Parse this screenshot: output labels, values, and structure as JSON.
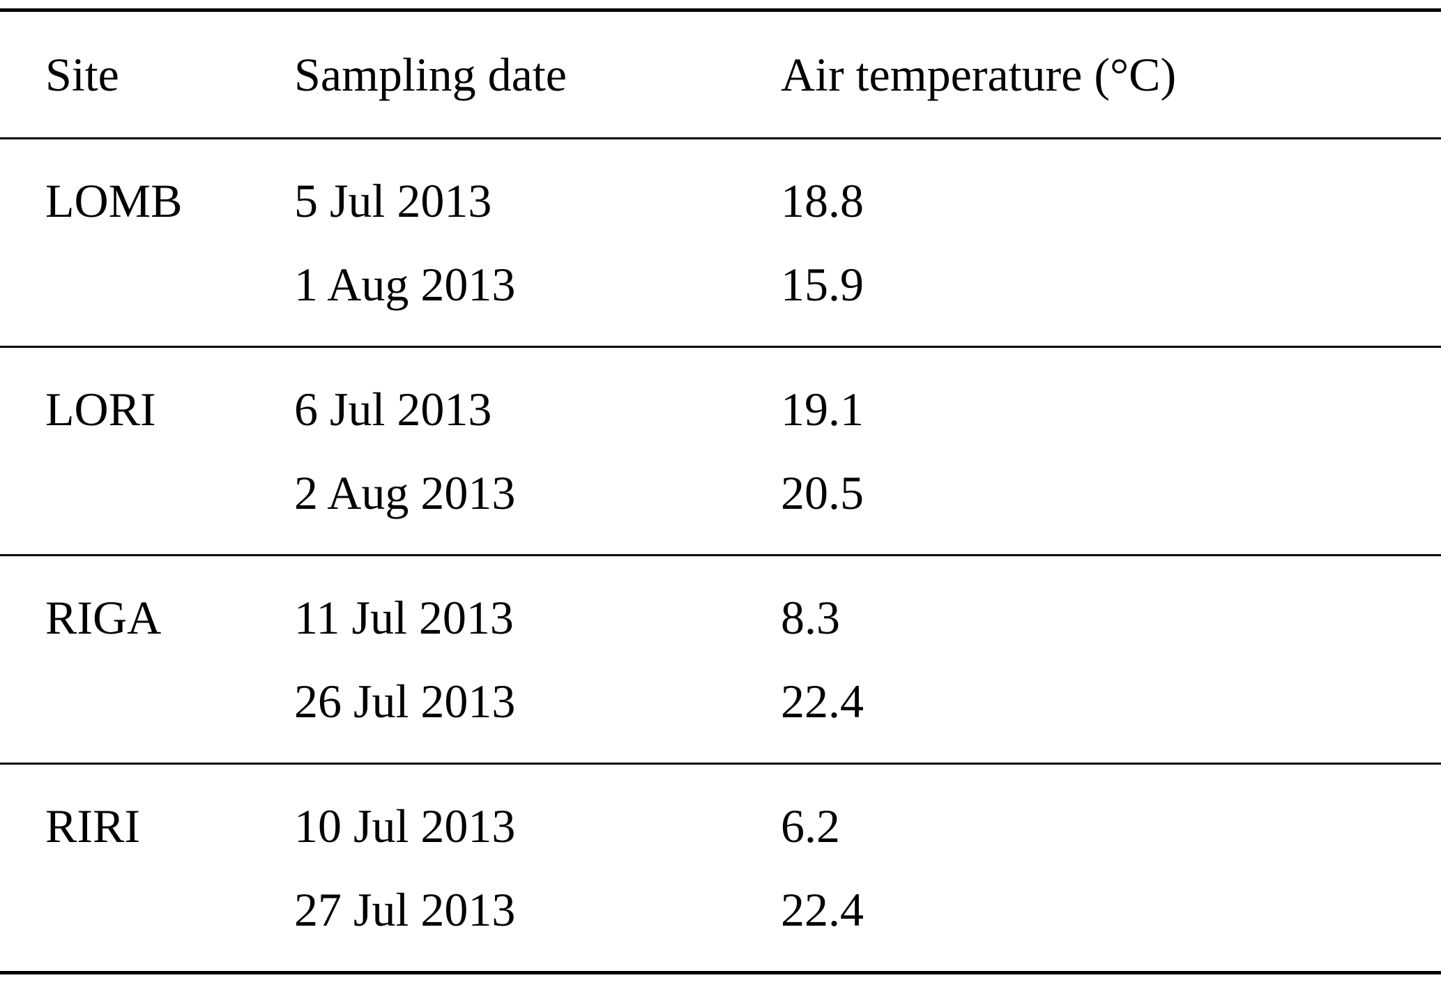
{
  "table": {
    "columns": [
      "Site",
      "Sampling date",
      "Air temperature (°C)"
    ],
    "groups": [
      {
        "site": "LOMB",
        "rows": [
          {
            "date": "5 Jul 2013",
            "temp": "18.8"
          },
          {
            "date": "1 Aug 2013",
            "temp": "15.9"
          }
        ]
      },
      {
        "site": "LORI",
        "rows": [
          {
            "date": "6 Jul 2013",
            "temp": "19.1"
          },
          {
            "date": "2 Aug 2013",
            "temp": "20.5"
          }
        ]
      },
      {
        "site": "RIGA",
        "rows": [
          {
            "date": "11 Jul 2013",
            "temp": "8.3"
          },
          {
            "date": "26 Jul 2013",
            "temp": "22.4"
          }
        ]
      },
      {
        "site": "RIRI",
        "rows": [
          {
            "date": "10 Jul 2013",
            "temp": "6.2"
          },
          {
            "date": "27 Jul 2013",
            "temp": "22.4"
          }
        ]
      }
    ]
  },
  "chart_data": {
    "type": "table",
    "title": "",
    "columns": [
      "Site",
      "Sampling date",
      "Air temperature (°C)"
    ],
    "rows": [
      [
        "LOMB",
        "5 Jul 2013",
        18.8
      ],
      [
        "LOMB",
        "1 Aug 2013",
        15.9
      ],
      [
        "LORI",
        "6 Jul 2013",
        19.1
      ],
      [
        "LORI",
        "2 Aug 2013",
        20.5
      ],
      [
        "RIGA",
        "11 Jul 2013",
        8.3
      ],
      [
        "RIGA",
        "26 Jul 2013",
        22.4
      ],
      [
        "RIRI",
        "10 Jul 2013",
        6.2
      ],
      [
        "RIRI",
        "27 Jul 2013",
        22.4
      ]
    ]
  },
  "colors": {
    "text": "#000000",
    "background": "#ffffff",
    "rule": "#000000"
  }
}
